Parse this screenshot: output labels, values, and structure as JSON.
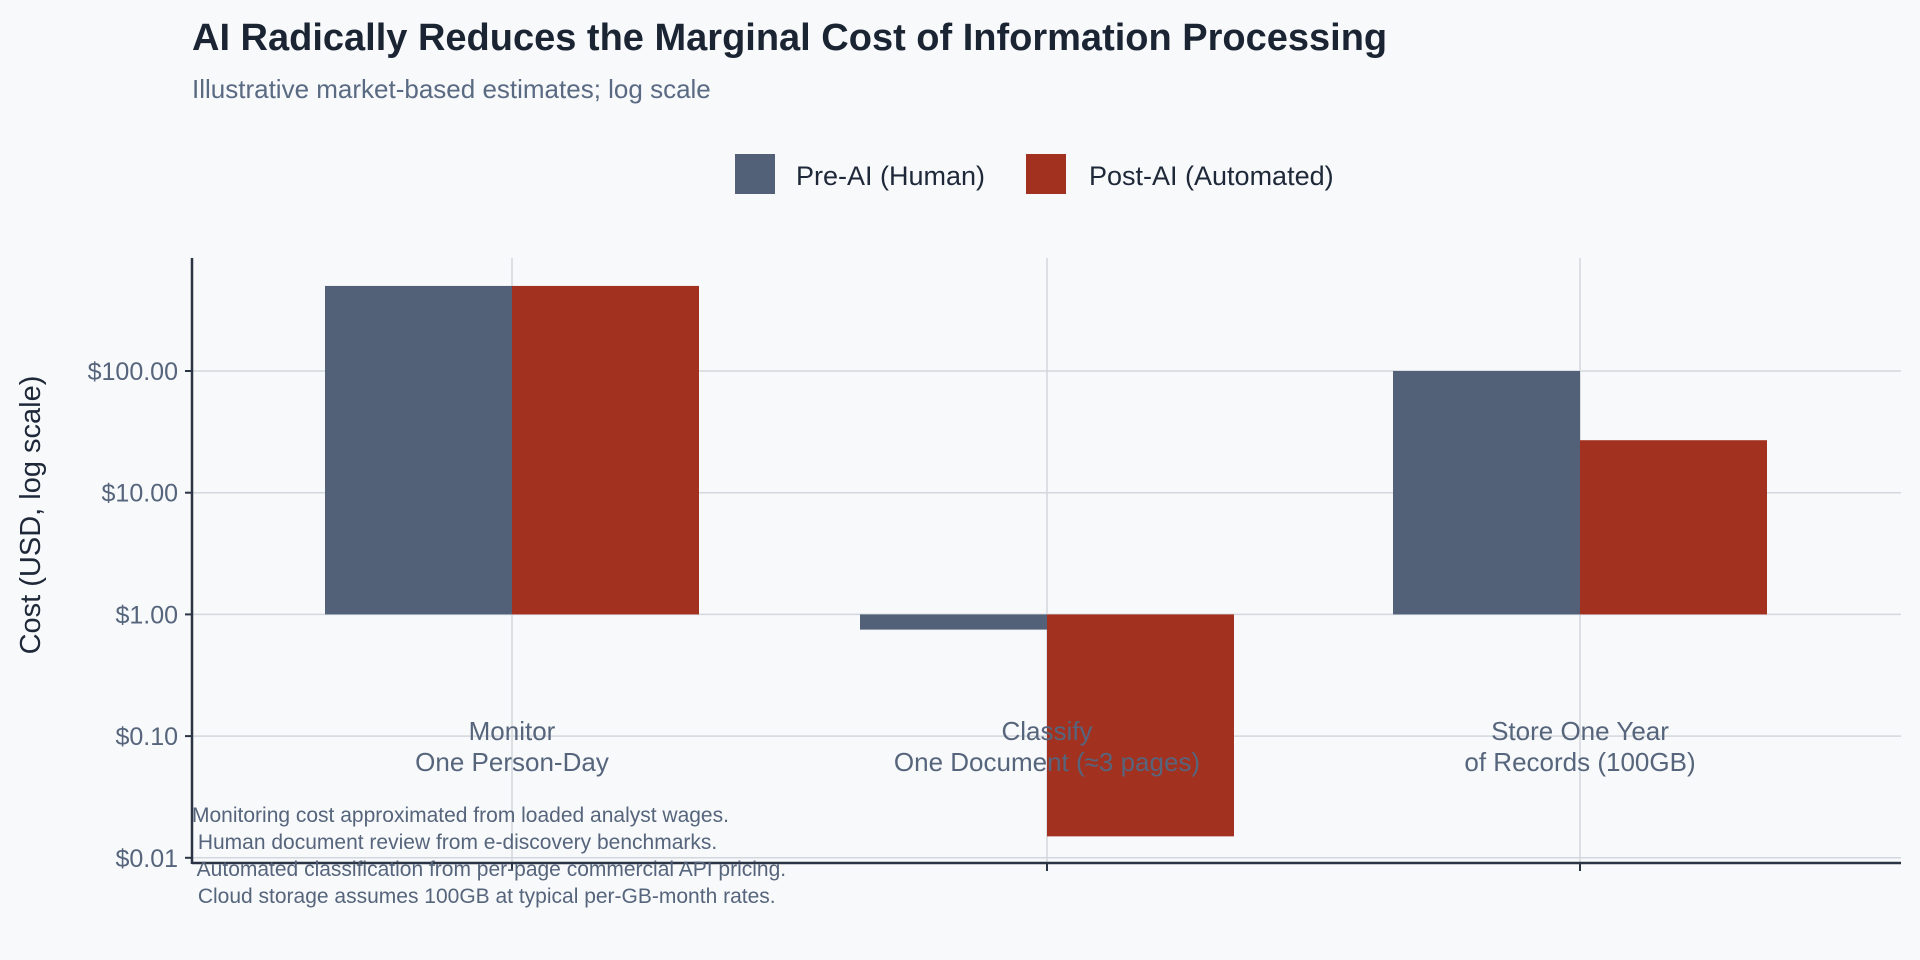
{
  "chart_data": {
    "type": "bar",
    "title": "AI Radically Reduces the Marginal Cost of Information Processing",
    "subtitle": "Illustrative market-based estimates; log scale",
    "ylabel": "Cost (USD, log scale)",
    "xlabel": "",
    "yscale": "log",
    "ylim": [
      0.01,
      1000
    ],
    "bar_baseline": 1,
    "yticks": [
      100,
      10,
      1,
      0.1,
      0.01
    ],
    "ytick_labels": [
      "$100.00",
      "$10.00",
      "$1.00",
      "$0.10",
      "$0.01"
    ],
    "categories": [
      [
        "Monitor",
        "One Person-Day"
      ],
      [
        "Classify",
        "One Document (≈3 pages)"
      ],
      [
        "Store One Year",
        "of Records (100GB)"
      ]
    ],
    "series": [
      {
        "name": "Pre-AI (Human)",
        "color": "#526178",
        "values": [
          500,
          0.75,
          100
        ]
      },
      {
        "name": "Post-AI (Automated)",
        "color": "#a33120",
        "values": [
          500,
          0.015,
          27
        ]
      }
    ],
    "legend_position": "top-center",
    "grid": true,
    "footnotes": [
      "Monitoring cost approximated from loaded analyst wages.",
      " Human document review from e-discovery benchmarks.",
      " Automated classification from per-page commercial API pricing.",
      " Cloud storage assumes 100GB at typical per-GB-month rates."
    ]
  }
}
